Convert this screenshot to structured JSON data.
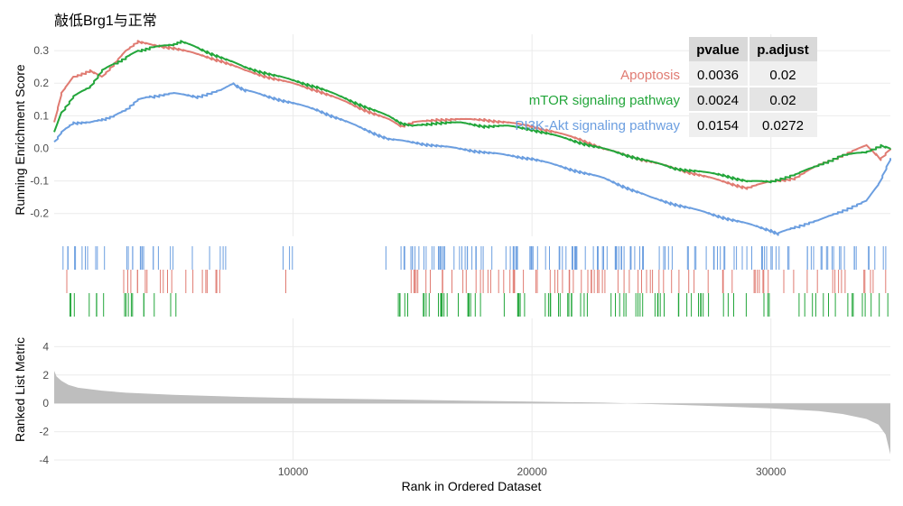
{
  "title": "敲低Brg1与正常",
  "x_axis_title": "Rank in Ordered Dataset",
  "es_axis_title": "Running Enrichment Score",
  "metric_axis_title": "Ranked List Metric",
  "colors": {
    "Apoptosis": "#e07b72",
    "mTOR signaling pathway": "#23a63b",
    "PI3K-Akt signaling pathway": "#6b9ee0",
    "metric_fill": "#bebebe",
    "grid": "#ebebeb",
    "table_header_bg": "#d9d9d9",
    "table_row_bg_1": "#efefef",
    "table_row_bg_2": "#e4e4e4"
  },
  "table": {
    "headers": [
      "pvalue",
      "p.adjust"
    ],
    "rows": [
      {
        "pathway": "Apoptosis",
        "pvalue": "0.0036",
        "padjust": "0.02"
      },
      {
        "pathway": "mTOR signaling pathway",
        "pvalue": "0.0024",
        "padjust": "0.02"
      },
      {
        "pathway": "PI3K-Akt signaling pathway",
        "pvalue": "0.0154",
        "padjust": "0.0272"
      }
    ]
  },
  "chart_data": [
    {
      "type": "line",
      "title": "敲低Brg1与正常",
      "xlabel": "",
      "ylabel": "Running Enrichment Score",
      "xlim": [
        0,
        35000
      ],
      "ylim": [
        -0.27,
        0.35
      ],
      "y_ticks": [
        -0.2,
        -0.1,
        0.0,
        0.1,
        0.2,
        0.3
      ],
      "x_ticks": [
        10000,
        20000,
        30000
      ],
      "grid": true,
      "legend": "top-right, inside, with p-value table",
      "series": [
        {
          "name": "Apoptosis",
          "x": [
            0,
            300,
            800,
            1500,
            2000,
            2500,
            3000,
            3500,
            4000,
            5000,
            6000,
            7000,
            8000,
            9000,
            10000,
            11000,
            12000,
            13000,
            14000,
            14500,
            15000,
            16000,
            17000,
            18000,
            19000,
            20000,
            21000,
            22000,
            23000,
            24000,
            25000,
            26000,
            27000,
            28000,
            29000,
            30000,
            31000,
            32000,
            33000,
            34000,
            34600,
            35000
          ],
          "y": [
            0.08,
            0.17,
            0.22,
            0.24,
            0.22,
            0.26,
            0.3,
            0.33,
            0.32,
            0.31,
            0.29,
            0.27,
            0.24,
            0.22,
            0.2,
            0.18,
            0.15,
            0.12,
            0.09,
            0.07,
            0.08,
            0.09,
            0.09,
            0.09,
            0.08,
            0.07,
            0.05,
            0.03,
            0.0,
            -0.02,
            -0.04,
            -0.06,
            -0.08,
            -0.1,
            -0.12,
            -0.1,
            -0.09,
            -0.05,
            -0.02,
            0.01,
            -0.03,
            0.0
          ]
        },
        {
          "name": "mTOR signaling pathway",
          "x": [
            0,
            300,
            800,
            1500,
            2000,
            2500,
            3000,
            3500,
            4000,
            5000,
            5300,
            6000,
            7000,
            8000,
            9000,
            10000,
            11000,
            12000,
            13000,
            14000,
            14500,
            15000,
            16000,
            17000,
            18000,
            19000,
            20000,
            21000,
            22000,
            23000,
            24000,
            25000,
            26000,
            27000,
            28000,
            29000,
            30000,
            31000,
            32000,
            33000,
            34000,
            34600,
            35000
          ],
          "y": [
            0.05,
            0.11,
            0.16,
            0.19,
            0.24,
            0.26,
            0.28,
            0.3,
            0.31,
            0.32,
            0.33,
            0.31,
            0.28,
            0.25,
            0.23,
            0.21,
            0.19,
            0.16,
            0.13,
            0.1,
            0.08,
            0.07,
            0.08,
            0.08,
            0.07,
            0.07,
            0.06,
            0.04,
            0.02,
            0.0,
            -0.02,
            -0.04,
            -0.06,
            -0.07,
            -0.08,
            -0.1,
            -0.1,
            -0.08,
            -0.05,
            -0.02,
            -0.01,
            0.01,
            0.0
          ]
        },
        {
          "name": "PI3K-Akt signaling pathway",
          "x": [
            0,
            300,
            800,
            1500,
            2000,
            2500,
            3000,
            3500,
            4000,
            5000,
            6000,
            7000,
            7500,
            8000,
            9000,
            10000,
            11000,
            12000,
            13000,
            14000,
            15000,
            16000,
            17000,
            18000,
            19000,
            20000,
            21000,
            22000,
            23000,
            24000,
            25000,
            26000,
            27000,
            28000,
            29000,
            30000,
            30300,
            31000,
            32000,
            33000,
            34000,
            34500,
            35000
          ],
          "y": [
            0.02,
            0.05,
            0.08,
            0.08,
            0.09,
            0.1,
            0.12,
            0.15,
            0.16,
            0.17,
            0.16,
            0.18,
            0.2,
            0.18,
            0.16,
            0.14,
            0.12,
            0.09,
            0.06,
            0.03,
            0.02,
            0.01,
            0.0,
            -0.01,
            -0.02,
            -0.03,
            -0.05,
            -0.07,
            -0.09,
            -0.12,
            -0.15,
            -0.17,
            -0.19,
            -0.21,
            -0.23,
            -0.25,
            -0.26,
            -0.24,
            -0.22,
            -0.19,
            -0.16,
            -0.11,
            -0.03
          ]
        }
      ]
    },
    {
      "type": "area",
      "xlabel": "Rank in Ordered Dataset",
      "ylabel": "Ranked List Metric",
      "xlim": [
        0,
        35000
      ],
      "ylim": [
        -4,
        6
      ],
      "y_ticks": [
        -4,
        -2,
        0,
        2,
        4
      ],
      "x_ticks": [
        10000,
        20000,
        30000
      ],
      "grid": true,
      "x": [
        0,
        100,
        300,
        600,
        1000,
        2000,
        3000,
        5000,
        8000,
        10000,
        15000,
        20000,
        23000,
        24000,
        25000,
        27000,
        30000,
        32000,
        33000,
        34000,
        34500,
        34800,
        35000
      ],
      "values": [
        2.3,
        1.9,
        1.6,
        1.3,
        1.1,
        0.9,
        0.75,
        0.6,
        0.45,
        0.38,
        0.25,
        0.12,
        0.05,
        0.0,
        -0.05,
        -0.15,
        -0.35,
        -0.55,
        -0.75,
        -1.1,
        -1.5,
        -2.2,
        -3.6
      ]
    }
  ]
}
